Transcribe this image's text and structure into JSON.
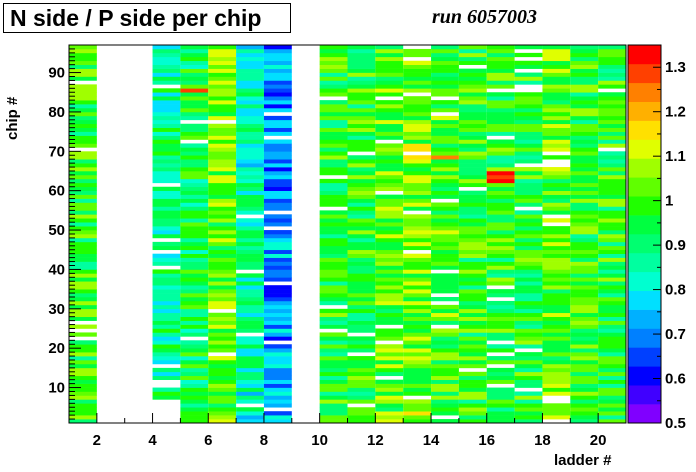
{
  "title": "N side / P side per chip",
  "run_label": "run 6057003",
  "chart_data": {
    "type": "heatmap",
    "title": "N side / P side per chip",
    "xlabel": "ladder #",
    "ylabel": "chip #",
    "x_range": [
      1,
      21
    ],
    "y_range": [
      1,
      97
    ],
    "x_ticks": [
      "2",
      "4",
      "6",
      "8",
      "10",
      "12",
      "14",
      "16",
      "18",
      "20"
    ],
    "y_ticks": [
      "10",
      "20",
      "30",
      "40",
      "50",
      "60",
      "70",
      "80",
      "90"
    ],
    "z_range": [
      0.5,
      1.35
    ],
    "z_ticks": [
      "0.5",
      "0.6",
      "0.7",
      "0.8",
      "0.9",
      "1",
      "1.1",
      "1.2",
      "1.3"
    ],
    "palette": [
      "#8000ff",
      "#4000ff",
      "#0000ff",
      "#0040ff",
      "#0080ff",
      "#00b0ff",
      "#00e0ff",
      "#00ffd0",
      "#00ffa0",
      "#00ff70",
      "#00ff40",
      "#20ff00",
      "#60ff00",
      "#a0ff00",
      "#e0ff00",
      "#ffe000",
      "#ffb000",
      "#ff8000",
      "#ff4000",
      "#ff0000"
    ],
    "ladder_columns": [
      {
        "ladder": 1,
        "chips": [
          1,
          96
        ],
        "mean": 0.98
      },
      {
        "ladder": 2,
        "chips": null
      },
      {
        "ladder": 3,
        "chips": null
      },
      {
        "ladder": 4,
        "chips": [
          7,
          96
        ],
        "mean": 0.88
      },
      {
        "ladder": 5,
        "chips": [
          1,
          96
        ],
        "mean": 0.93
      },
      {
        "ladder": 6,
        "chips": [
          1,
          96
        ],
        "mean": 1.02
      },
      {
        "ladder": 7,
        "chips": [
          1,
          96
        ],
        "mean": 0.86
      },
      {
        "ladder": 8,
        "chips": [
          1,
          96
        ],
        "mean": 0.72
      },
      {
        "ladder": 9,
        "chips": null
      },
      {
        "ladder": 10,
        "chips": [
          1,
          96
        ],
        "mean": 0.96
      },
      {
        "ladder": 11,
        "chips": [
          1,
          96
        ],
        "mean": 0.97
      },
      {
        "ladder": 12,
        "chips": [
          1,
          96
        ],
        "mean": 1.02
      },
      {
        "ladder": 13,
        "chips": [
          1,
          96
        ],
        "mean": 1.03
      },
      {
        "ladder": 14,
        "chips": [
          1,
          96
        ],
        "mean": 0.99
      },
      {
        "ladder": 15,
        "chips": [
          1,
          96
        ],
        "mean": 0.98
      },
      {
        "ladder": 16,
        "chips": [
          1,
          96
        ],
        "mean": 0.97
      },
      {
        "ladder": 17,
        "chips": [
          1,
          96
        ],
        "mean": 0.96
      },
      {
        "ladder": 18,
        "chips": [
          1,
          96
        ],
        "mean": 1.02
      },
      {
        "ladder": 19,
        "chips": [
          1,
          96
        ],
        "mean": 0.98
      },
      {
        "ladder": 20,
        "chips": [
          1,
          96
        ],
        "mean": 0.96
      }
    ],
    "notable_cells": [
      {
        "ladder": 16,
        "chip": 64,
        "value": 1.32
      },
      {
        "ladder": 16,
        "chip": 63,
        "value": 1.3
      },
      {
        "ladder": 16,
        "chip": 62,
        "value": 1.32
      },
      {
        "ladder": 5,
        "chip": 85,
        "value": 1.28
      },
      {
        "ladder": 14,
        "chip": 68,
        "value": 1.25
      }
    ]
  }
}
